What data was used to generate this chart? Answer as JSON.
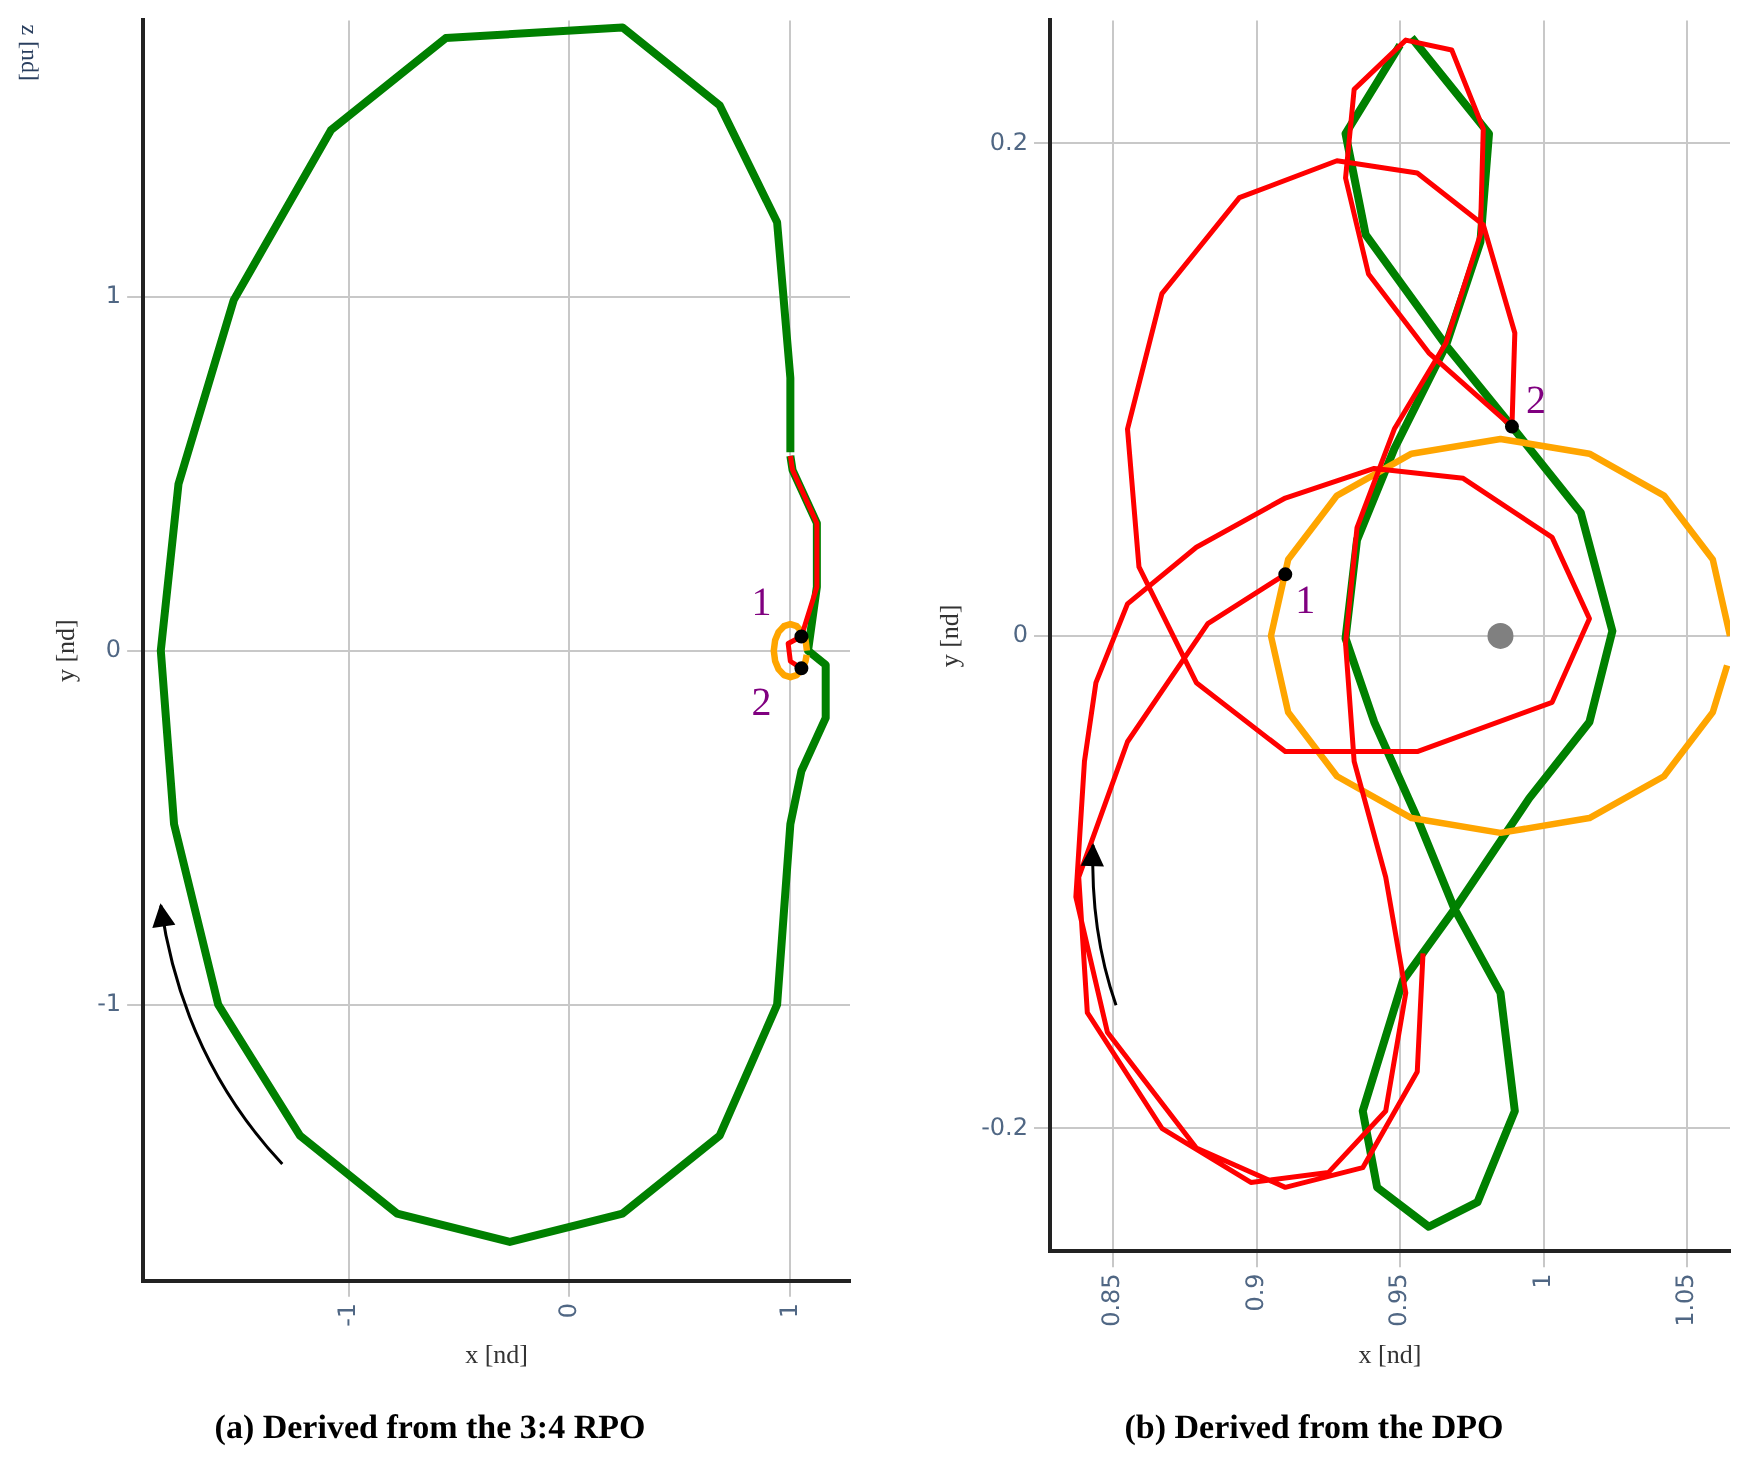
{
  "chart_data": [
    {
      "type": "line",
      "title": "(a) Derived from the 3:4 RPO",
      "xlabel": "x [nd]",
      "ylabel": "y [nd]",
      "annotations": [
        "z [nd]",
        {
          "text": "1",
          "x": 1.05,
          "y": 0.04
        },
        {
          "text": "2",
          "x": 1.05,
          "y": -0.05
        }
      ],
      "xlim": [
        -1.93,
        1.27
      ],
      "ylim": [
        -1.78,
        1.78
      ],
      "xticks": [
        -1,
        0,
        1
      ],
      "yticks": [
        -1,
        0,
        1
      ],
      "grid": true,
      "legend": false,
      "series": [
        {
          "color": "#008000",
          "x": [
            1.0,
            1.0,
            0.94,
            0.68,
            0.24,
            -0.56,
            -1.08,
            -1.52,
            -1.77,
            -1.85,
            -1.79,
            -1.59,
            -1.22,
            -0.78,
            -0.27,
            0.24,
            0.68,
            0.94,
            1.0,
            1.05,
            1.16,
            1.16,
            1.08,
            1.12,
            1.12,
            1.01,
            1.0
          ],
          "values": [
            0.56,
            0.77,
            1.21,
            1.54,
            1.76,
            1.73,
            1.47,
            0.99,
            0.47,
            0.0,
            -0.49,
            -1.0,
            -1.37,
            -1.59,
            -1.67,
            -1.59,
            -1.37,
            -1.0,
            -0.49,
            -0.34,
            -0.19,
            -0.04,
            0.0,
            0.18,
            0.36,
            0.51,
            0.55
          ]
        },
        {
          "color": "#ffa500",
          "x": [
            1.075,
            1.069,
            1.053,
            1.029,
            1,
            0.971,
            0.947,
            0.931,
            0.925,
            0.931,
            0.947,
            0.971,
            1,
            1.029,
            1.053,
            1.069,
            1.074
          ],
          "values": [
            0,
            0.029,
            0.053,
            0.069,
            0.075,
            0.069,
            0.053,
            0.029,
            0,
            -0.029,
            -0.053,
            -0.069,
            -0.075,
            -0.069,
            -0.053,
            -0.029,
            -0.012
          ]
        },
        {
          "color": "#ff0000",
          "x": [
            1.05,
            1.0,
            0.99,
            1.05,
            1.12,
            1.12,
            1.01,
            1.0
          ],
          "values": [
            -0.05,
            -0.03,
            0.02,
            0.04,
            0.18,
            0.36,
            0.51,
            0.55
          ]
        },
        {
          "type": "scatter",
          "color": "#000000",
          "x": [
            1.05,
            1.05
          ],
          "values": [
            0.04,
            -0.05
          ]
        }
      ]
    },
    {
      "type": "line",
      "title": "(b) Derived from the DPO",
      "xlabel": "x [nd]",
      "ylabel": "y [nd]",
      "annotations": [
        {
          "text": "1",
          "x": 0.91,
          "y": 0.025
        },
        {
          "text": "2",
          "x": 0.989,
          "y": 0.085
        }
      ],
      "xlim": [
        0.828,
        1.065
      ],
      "ylim": [
        -0.25,
        0.25
      ],
      "xticks": [
        0.85,
        0.9,
        0.95,
        1,
        1.05
      ],
      "yticks": [
        -0.2,
        0,
        0.2
      ],
      "grid": true,
      "legend": false,
      "series": [
        {
          "color": "#008000",
          "x": [
            0.954,
            0.981,
            0.978,
            0.966,
            0.948,
            0.935,
            0.931,
            0.941,
            0.956,
            0.969,
            0.985,
            0.99,
            0.977,
            0.96,
            0.942,
            0.937,
            0.951,
            0.969,
            0.995,
            1.016,
            1.024,
            1.013,
            0.989,
            0.966,
            0.938,
            0.931,
            0.95
          ],
          "values": [
            0.243,
            0.204,
            0.16,
            0.118,
            0.076,
            0.039,
            -0.001,
            -0.035,
            -0.074,
            -0.111,
            -0.145,
            -0.193,
            -0.23,
            -0.24,
            -0.224,
            -0.193,
            -0.14,
            -0.111,
            -0.066,
            -0.035,
            0.002,
            0.05,
            0.085,
            0.118,
            0.163,
            0.204,
            0.24
          ]
        },
        {
          "color": "#ffa500",
          "x": [
            1.065,
            1.059,
            1.042,
            1.016,
            0.985,
            0.954,
            0.928,
            0.911,
            0.905,
            0.911,
            0.928,
            0.954,
            0.985,
            1.016,
            1.042,
            1.059,
            1.064
          ],
          "values": [
            0,
            0.031,
            0.057,
            0.074,
            0.08,
            0.074,
            0.057,
            0.031,
            0,
            -0.031,
            -0.057,
            -0.074,
            -0.08,
            -0.074,
            -0.057,
            -0.031,
            -0.012
          ]
        },
        {
          "color": "#ff0000",
          "x": [
            0.91,
            0.883,
            0.855,
            0.838,
            0.841,
            0.867,
            0.898,
            0.925,
            0.945,
            0.952,
            0.945,
            0.934,
            0.931,
            0.935,
            0.948,
            0.966,
            0.978,
            0.979,
            0.968,
            0.952,
            0.934,
            0.931,
            0.939,
            0.96,
            0.989,
            0.99,
            0.979,
            0.956,
            0.928,
            0.894,
            0.867,
            0.855,
            0.859,
            0.879,
            0.91,
            0.956,
            1.003,
            1.016,
            1.003,
            0.972,
            0.941,
            0.91,
            0.879,
            0.855,
            0.844,
            0.84,
            0.837,
            0.848,
            0.879,
            0.91,
            0.937,
            0.956,
            0.958
          ],
          "values": [
            0.025,
            0.005,
            -0.043,
            -0.098,
            -0.153,
            -0.2,
            -0.222,
            -0.218,
            -0.193,
            -0.145,
            -0.098,
            -0.051,
            -0.003,
            0.044,
            0.084,
            0.119,
            0.163,
            0.206,
            0.238,
            0.242,
            0.222,
            0.186,
            0.147,
            0.115,
            0.085,
            0.123,
            0.167,
            0.188,
            0.193,
            0.178,
            0.139,
            0.084,
            0.028,
            -0.019,
            -0.047,
            -0.047,
            -0.027,
            0.007,
            0.04,
            0.064,
            0.068,
            0.056,
            0.036,
            0.013,
            -0.019,
            -0.051,
            -0.106,
            -0.161,
            -0.208,
            -0.224,
            -0.216,
            -0.177,
            -0.129
          ]
        },
        {
          "type": "scatter",
          "color": "#808080",
          "x": [
            0.985
          ],
          "values": [
            0.0
          ]
        },
        {
          "type": "scatter",
          "color": "#000000",
          "x": [
            0.91,
            0.989
          ],
          "values": [
            0.025,
            0.085
          ]
        }
      ]
    }
  ]
}
